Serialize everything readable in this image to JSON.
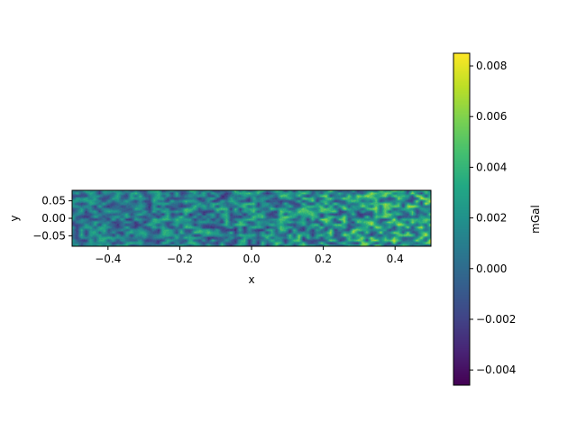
{
  "chart_data": {
    "type": "heatmap",
    "title": "",
    "xlabel": "x",
    "ylabel": "y",
    "xlim": [
      -0.5,
      0.5
    ],
    "ylim": [
      0.08,
      -0.08
    ],
    "x_ticks": [
      {
        "value": -0.4,
        "label": "−0.4"
      },
      {
        "value": -0.2,
        "label": "−0.2"
      },
      {
        "value": 0.0,
        "label": "0.0"
      },
      {
        "value": 0.2,
        "label": "0.2"
      },
      {
        "value": 0.4,
        "label": "0.4"
      }
    ],
    "y_ticks": [
      {
        "value": -0.05,
        "label": "−0.05"
      },
      {
        "value": 0.0,
        "label": "0.00"
      },
      {
        "value": 0.05,
        "label": "0.05"
      }
    ],
    "colormap": "viridis",
    "grid": false,
    "value_range": [
      -0.0046,
      0.0085
    ],
    "value_trend_along_x": {
      "x": [
        -0.5,
        0.0,
        0.5
      ],
      "mean": [
        0.0005,
        0.001,
        0.003
      ]
    },
    "colorbar": {
      "label": "mGal",
      "vmin": -0.0046,
      "vmax": 0.0085,
      "ticks": [
        {
          "value": -0.004,
          "label": "−0.004"
        },
        {
          "value": -0.002,
          "label": "−0.002"
        },
        {
          "value": 0.0,
          "label": "0.000"
        },
        {
          "value": 0.002,
          "label": "0.002"
        },
        {
          "value": 0.004,
          "label": "0.004"
        },
        {
          "value": 0.006,
          "label": "0.006"
        },
        {
          "value": 0.008,
          "label": "0.008"
        }
      ]
    }
  }
}
